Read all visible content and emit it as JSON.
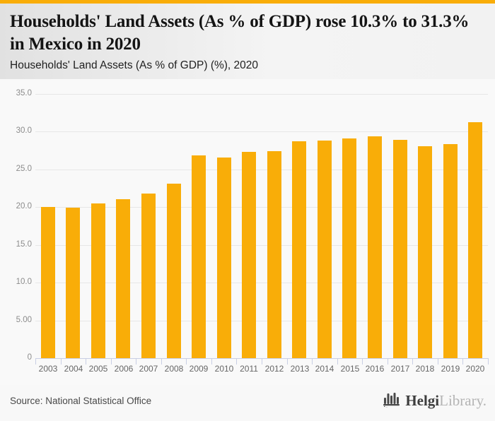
{
  "header": {
    "title": "Households' Land Assets (As % of GDP) rose 10.3% to 31.3% in Mexico in 2020",
    "subtitle": "Households' Land Assets (As % of GDP) (%), 2020"
  },
  "chart_data": {
    "type": "bar",
    "title": "Households' Land Assets (As % of GDP) (%), 2020",
    "categories": [
      "2003",
      "2004",
      "2005",
      "2006",
      "2007",
      "2008",
      "2009",
      "2010",
      "2011",
      "2012",
      "2013",
      "2014",
      "2015",
      "2016",
      "2017",
      "2018",
      "2019",
      "2020"
    ],
    "values": [
      20.0,
      19.9,
      20.5,
      21.1,
      21.8,
      23.1,
      26.9,
      26.6,
      27.3,
      27.4,
      28.7,
      28.8,
      29.1,
      29.4,
      28.9,
      28.1,
      28.4,
      31.3
    ],
    "xlabel": "",
    "ylabel": "",
    "ylim": [
      0,
      35
    ],
    "ytick_values": [
      35,
      30,
      25,
      20,
      15,
      10,
      5,
      0
    ],
    "ytick_labels": [
      "35.0",
      "30.0",
      "25.0",
      "20.0",
      "15.0",
      "10.0",
      "5.00",
      "0"
    ],
    "grid": true,
    "legend": "none",
    "bar_color": "#F9AD08"
  },
  "footer": {
    "source": "Source: National Statistical Office",
    "logo": {
      "icon": "bar-chart-logo-icon",
      "part1": "Helgi",
      "part2": "Library",
      "period": "."
    }
  },
  "colors": {
    "accent": "#F9AD08",
    "top_strip": "#F9AD08",
    "gridline": "#e7e7e7",
    "axis": "#c9cfe4",
    "page_background": "#f8f8f8"
  }
}
